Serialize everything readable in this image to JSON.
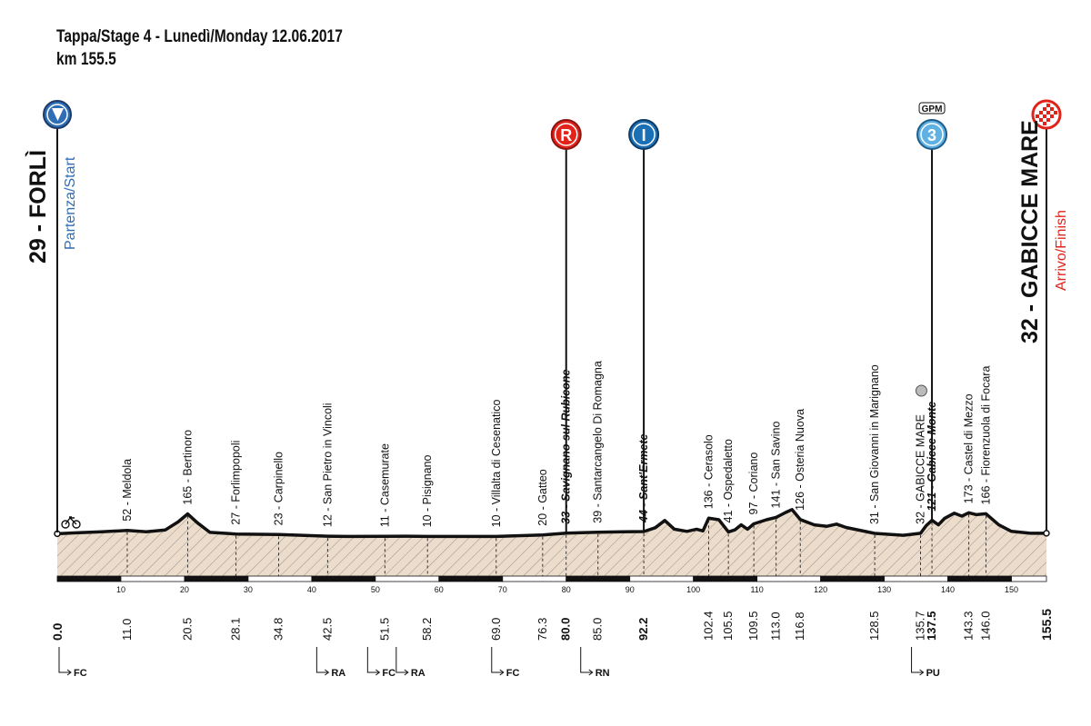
{
  "header": {
    "title": "Tappa/Stage 4 - Lunedì/Monday  12.06.2017",
    "distance": "km 155.5"
  },
  "colors": {
    "profile_fill": "#ecdccb",
    "profile_line": "#111111",
    "start_blue": "#2f6eb5",
    "finish_red": "#e2231a",
    "sprint_blue": "#1b6fb4",
    "gpm_blue": "#5fb0e3",
    "marker_red": "#e2231a"
  },
  "start": {
    "name": "29 - FORLÌ",
    "sublabel": "Partenza/Start",
    "icon": "start-arrow-icon"
  },
  "finish": {
    "name": "32 - GABICCE MARE",
    "sublabel": "Arrivo/Finish",
    "icon": "checkered-flag-icon"
  },
  "markers": [
    {
      "type": "refreshment",
      "letter": "R",
      "km": 80.0,
      "icon": "refreshment-point-icon"
    },
    {
      "type": "intermediate-sprint",
      "letter": "I",
      "km": 92.2,
      "icon": "intermediate-sprint-icon"
    },
    {
      "type": "gpm",
      "letter": "3",
      "label": "GPM",
      "km": 137.5,
      "icon": "gpm-climb-icon"
    }
  ],
  "chart_data": {
    "type": "area",
    "title": "Tappa/Stage 4 - Lunedì/Monday  12.06.2017",
    "subtitle": "km 155.5",
    "xlim": [
      0,
      155.5
    ],
    "ylim": [
      0,
      200
    ],
    "x_ticks": [
      10,
      20,
      30,
      40,
      50,
      60,
      70,
      80,
      90,
      100,
      110,
      120,
      130,
      140,
      150
    ],
    "profile": [
      {
        "km": 0,
        "alt": 29
      },
      {
        "km": 3,
        "alt": 35
      },
      {
        "km": 7,
        "alt": 42
      },
      {
        "km": 11,
        "alt": 52
      },
      {
        "km": 14,
        "alt": 42
      },
      {
        "km": 17,
        "alt": 55
      },
      {
        "km": 19,
        "alt": 110
      },
      {
        "km": 20.5,
        "alt": 165
      },
      {
        "km": 22,
        "alt": 105
      },
      {
        "km": 24,
        "alt": 38
      },
      {
        "km": 28.1,
        "alt": 27
      },
      {
        "km": 34.8,
        "alt": 23
      },
      {
        "km": 42.5,
        "alt": 12
      },
      {
        "km": 46,
        "alt": 10
      },
      {
        "km": 51.5,
        "alt": 11
      },
      {
        "km": 55,
        "alt": 12
      },
      {
        "km": 58.2,
        "alt": 10
      },
      {
        "km": 64,
        "alt": 10
      },
      {
        "km": 69,
        "alt": 10
      },
      {
        "km": 76.3,
        "alt": 20
      },
      {
        "km": 80,
        "alt": 33
      },
      {
        "km": 85,
        "alt": 39
      },
      {
        "km": 89,
        "alt": 42
      },
      {
        "km": 92.2,
        "alt": 44
      },
      {
        "km": 94,
        "alt": 70
      },
      {
        "km": 95.5,
        "alt": 120
      },
      {
        "km": 97,
        "alt": 60
      },
      {
        "km": 99,
        "alt": 45
      },
      {
        "km": 100.5,
        "alt": 60
      },
      {
        "km": 101.5,
        "alt": 48
      },
      {
        "km": 102.4,
        "alt": 136
      },
      {
        "km": 104,
        "alt": 125
      },
      {
        "km": 105.5,
        "alt": 41
      },
      {
        "km": 106.5,
        "alt": 55
      },
      {
        "km": 107.5,
        "alt": 90
      },
      {
        "km": 108.5,
        "alt": 60
      },
      {
        "km": 109.5,
        "alt": 97
      },
      {
        "km": 111.5,
        "alt": 125
      },
      {
        "km": 113,
        "alt": 141
      },
      {
        "km": 114.5,
        "alt": 175
      },
      {
        "km": 115.5,
        "alt": 195
      },
      {
        "km": 116.8,
        "alt": 126
      },
      {
        "km": 119,
        "alt": 90
      },
      {
        "km": 121,
        "alt": 80
      },
      {
        "km": 122.5,
        "alt": 95
      },
      {
        "km": 124,
        "alt": 72
      },
      {
        "km": 128.5,
        "alt": 31
      },
      {
        "km": 133,
        "alt": 18
      },
      {
        "km": 135.7,
        "alt": 32
      },
      {
        "km": 136.6,
        "alt": 85
      },
      {
        "km": 137.5,
        "alt": 121
      },
      {
        "km": 138.5,
        "alt": 90
      },
      {
        "km": 139.5,
        "alt": 135
      },
      {
        "km": 141,
        "alt": 170
      },
      {
        "km": 142.2,
        "alt": 150
      },
      {
        "km": 143.3,
        "alt": 173
      },
      {
        "km": 144.5,
        "alt": 160
      },
      {
        "km": 146,
        "alt": 166
      },
      {
        "km": 148,
        "alt": 90
      },
      {
        "km": 150,
        "alt": 45
      },
      {
        "km": 153,
        "alt": 32
      },
      {
        "km": 155.5,
        "alt": 32
      }
    ],
    "waypoints": [
      {
        "label": "52 - Meldola",
        "km": "11.0",
        "x": 11.0
      },
      {
        "label": "165 - Bertinoro",
        "km": "20.5",
        "x": 20.5
      },
      {
        "label": "27 - Forlimpopoli",
        "km": "28.1",
        "x": 28.1
      },
      {
        "label": "23 - Carpinello",
        "km": "34.8",
        "x": 34.8
      },
      {
        "label": "12 - San Pietro in Vincoli",
        "km": "42.5",
        "x": 42.5
      },
      {
        "label": "11 - Casemurate",
        "km": "51.5",
        "x": 51.5
      },
      {
        "label": "10 - Pisignano",
        "km": "58.2",
        "x": 58.2
      },
      {
        "label": "10 - Villalta di Cesenatico",
        "km": "69.0",
        "x": 69.0
      },
      {
        "label": "20 - Gatteo",
        "km": "76.3",
        "x": 76.3
      },
      {
        "label": "33 - Savignano sul Rubicone",
        "km": "80.0",
        "x": 80.0,
        "bold": true
      },
      {
        "label": "39 - Santarcangelo Di Romagna",
        "km": "85.0",
        "x": 85.0
      },
      {
        "label": "44 - Sant'Ermete",
        "km": "92.2",
        "x": 92.2,
        "bold": true
      },
      {
        "label": "136 - Cerasolo",
        "km": "102.4",
        "x": 102.4
      },
      {
        "label": "41 - Ospedaletto",
        "km": "105.5",
        "x": 105.5
      },
      {
        "label": "97 - Coriano",
        "km": "109.5",
        "x": 109.5
      },
      {
        "label": "141 - San Savino",
        "km": "113.0",
        "x": 113.0
      },
      {
        "label": "126 - Osteria Nuova",
        "km": "116.8",
        "x": 116.8
      },
      {
        "label": "31 - San Giovanni in Marignano",
        "km": "128.5",
        "x": 128.5
      },
      {
        "label": "32 - GABICCE MARE",
        "km": "135.7",
        "x": 135.7
      },
      {
        "label": "121 - Gabicce Monte",
        "km": "137.5",
        "x": 137.5,
        "bold": true
      },
      {
        "label": "173 - Castel di Mezzo",
        "km": "143.3",
        "x": 143.3
      },
      {
        "label": "166 - Fiorenzuola di Focara",
        "km": "146.0",
        "x": 146.0
      }
    ],
    "start_km": "0.0",
    "finish_km": "155.5",
    "road_codes": [
      {
        "label": "FC",
        "x": 0
      },
      {
        "label": "RA",
        "x": 40.5
      },
      {
        "label": "FC",
        "x": 48.5
      },
      {
        "label": "RA",
        "x": 53.0
      },
      {
        "label": "FC",
        "x": 68.0
      },
      {
        "label": "RN",
        "x": 82.0
      },
      {
        "label": "PU",
        "x": 134.0
      }
    ]
  }
}
